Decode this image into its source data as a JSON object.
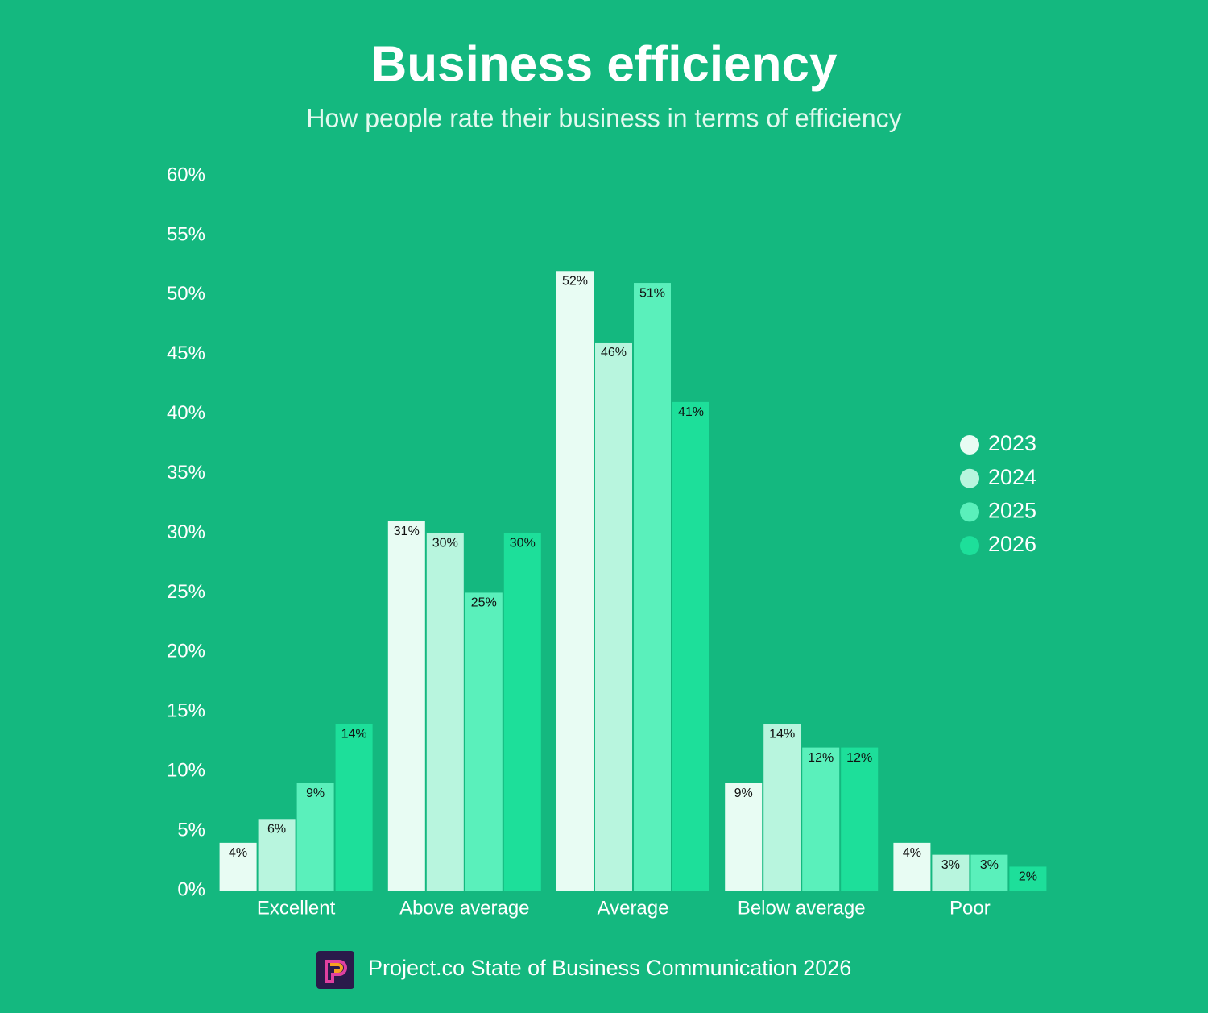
{
  "chart_data": {
    "type": "bar",
    "title": "Business efficiency",
    "subtitle": "How people rate their business in terms of efficiency",
    "source": "Project.co State of Business Communication 2026",
    "categories": [
      "Excellent",
      "Above average",
      "Average",
      "Below average",
      "Poor"
    ],
    "series": [
      {
        "name": "2023",
        "color": "#e8fcf3",
        "values": [
          4,
          31,
          52,
          9,
          4
        ],
        "value_labels": [
          "4%",
          "31%",
          "52%",
          "9%",
          "4%"
        ]
      },
      {
        "name": "2024",
        "color": "#b8f5de",
        "values": [
          6,
          30,
          46,
          14,
          3
        ],
        "value_labels": [
          "6%",
          "30%",
          "46%",
          "14%",
          "3%"
        ]
      },
      {
        "name": "2025",
        "color": "#5af0bb",
        "values": [
          9,
          25,
          51,
          12,
          3
        ],
        "value_labels": [
          "9%",
          "25%",
          "51%",
          "12%",
          "3%"
        ]
      },
      {
        "name": "2026",
        "color": "#1ddf9a",
        "values": [
          14,
          30,
          41,
          12,
          2
        ],
        "value_labels": [
          "14%",
          "30%",
          "41%",
          "12%",
          "2%"
        ]
      }
    ],
    "ylim": [
      0,
      60
    ],
    "yticks": [
      {
        "value": 0,
        "label": "0%"
      },
      {
        "value": 5,
        "label": "5%"
      },
      {
        "value": 10,
        "label": "10%"
      },
      {
        "value": 15,
        "label": "15%"
      },
      {
        "value": 20,
        "label": "20%"
      },
      {
        "value": 25,
        "label": "25%"
      },
      {
        "value": 30,
        "label": "30%"
      },
      {
        "value": 35,
        "label": "35%"
      },
      {
        "value": 40,
        "label": "40%"
      },
      {
        "value": 45,
        "label": "45%"
      },
      {
        "value": 50,
        "label": "50%"
      },
      {
        "value": 55,
        "label": "55%"
      },
      {
        "value": 60,
        "label": "60%"
      }
    ],
    "grid": false,
    "legend": "right"
  }
}
